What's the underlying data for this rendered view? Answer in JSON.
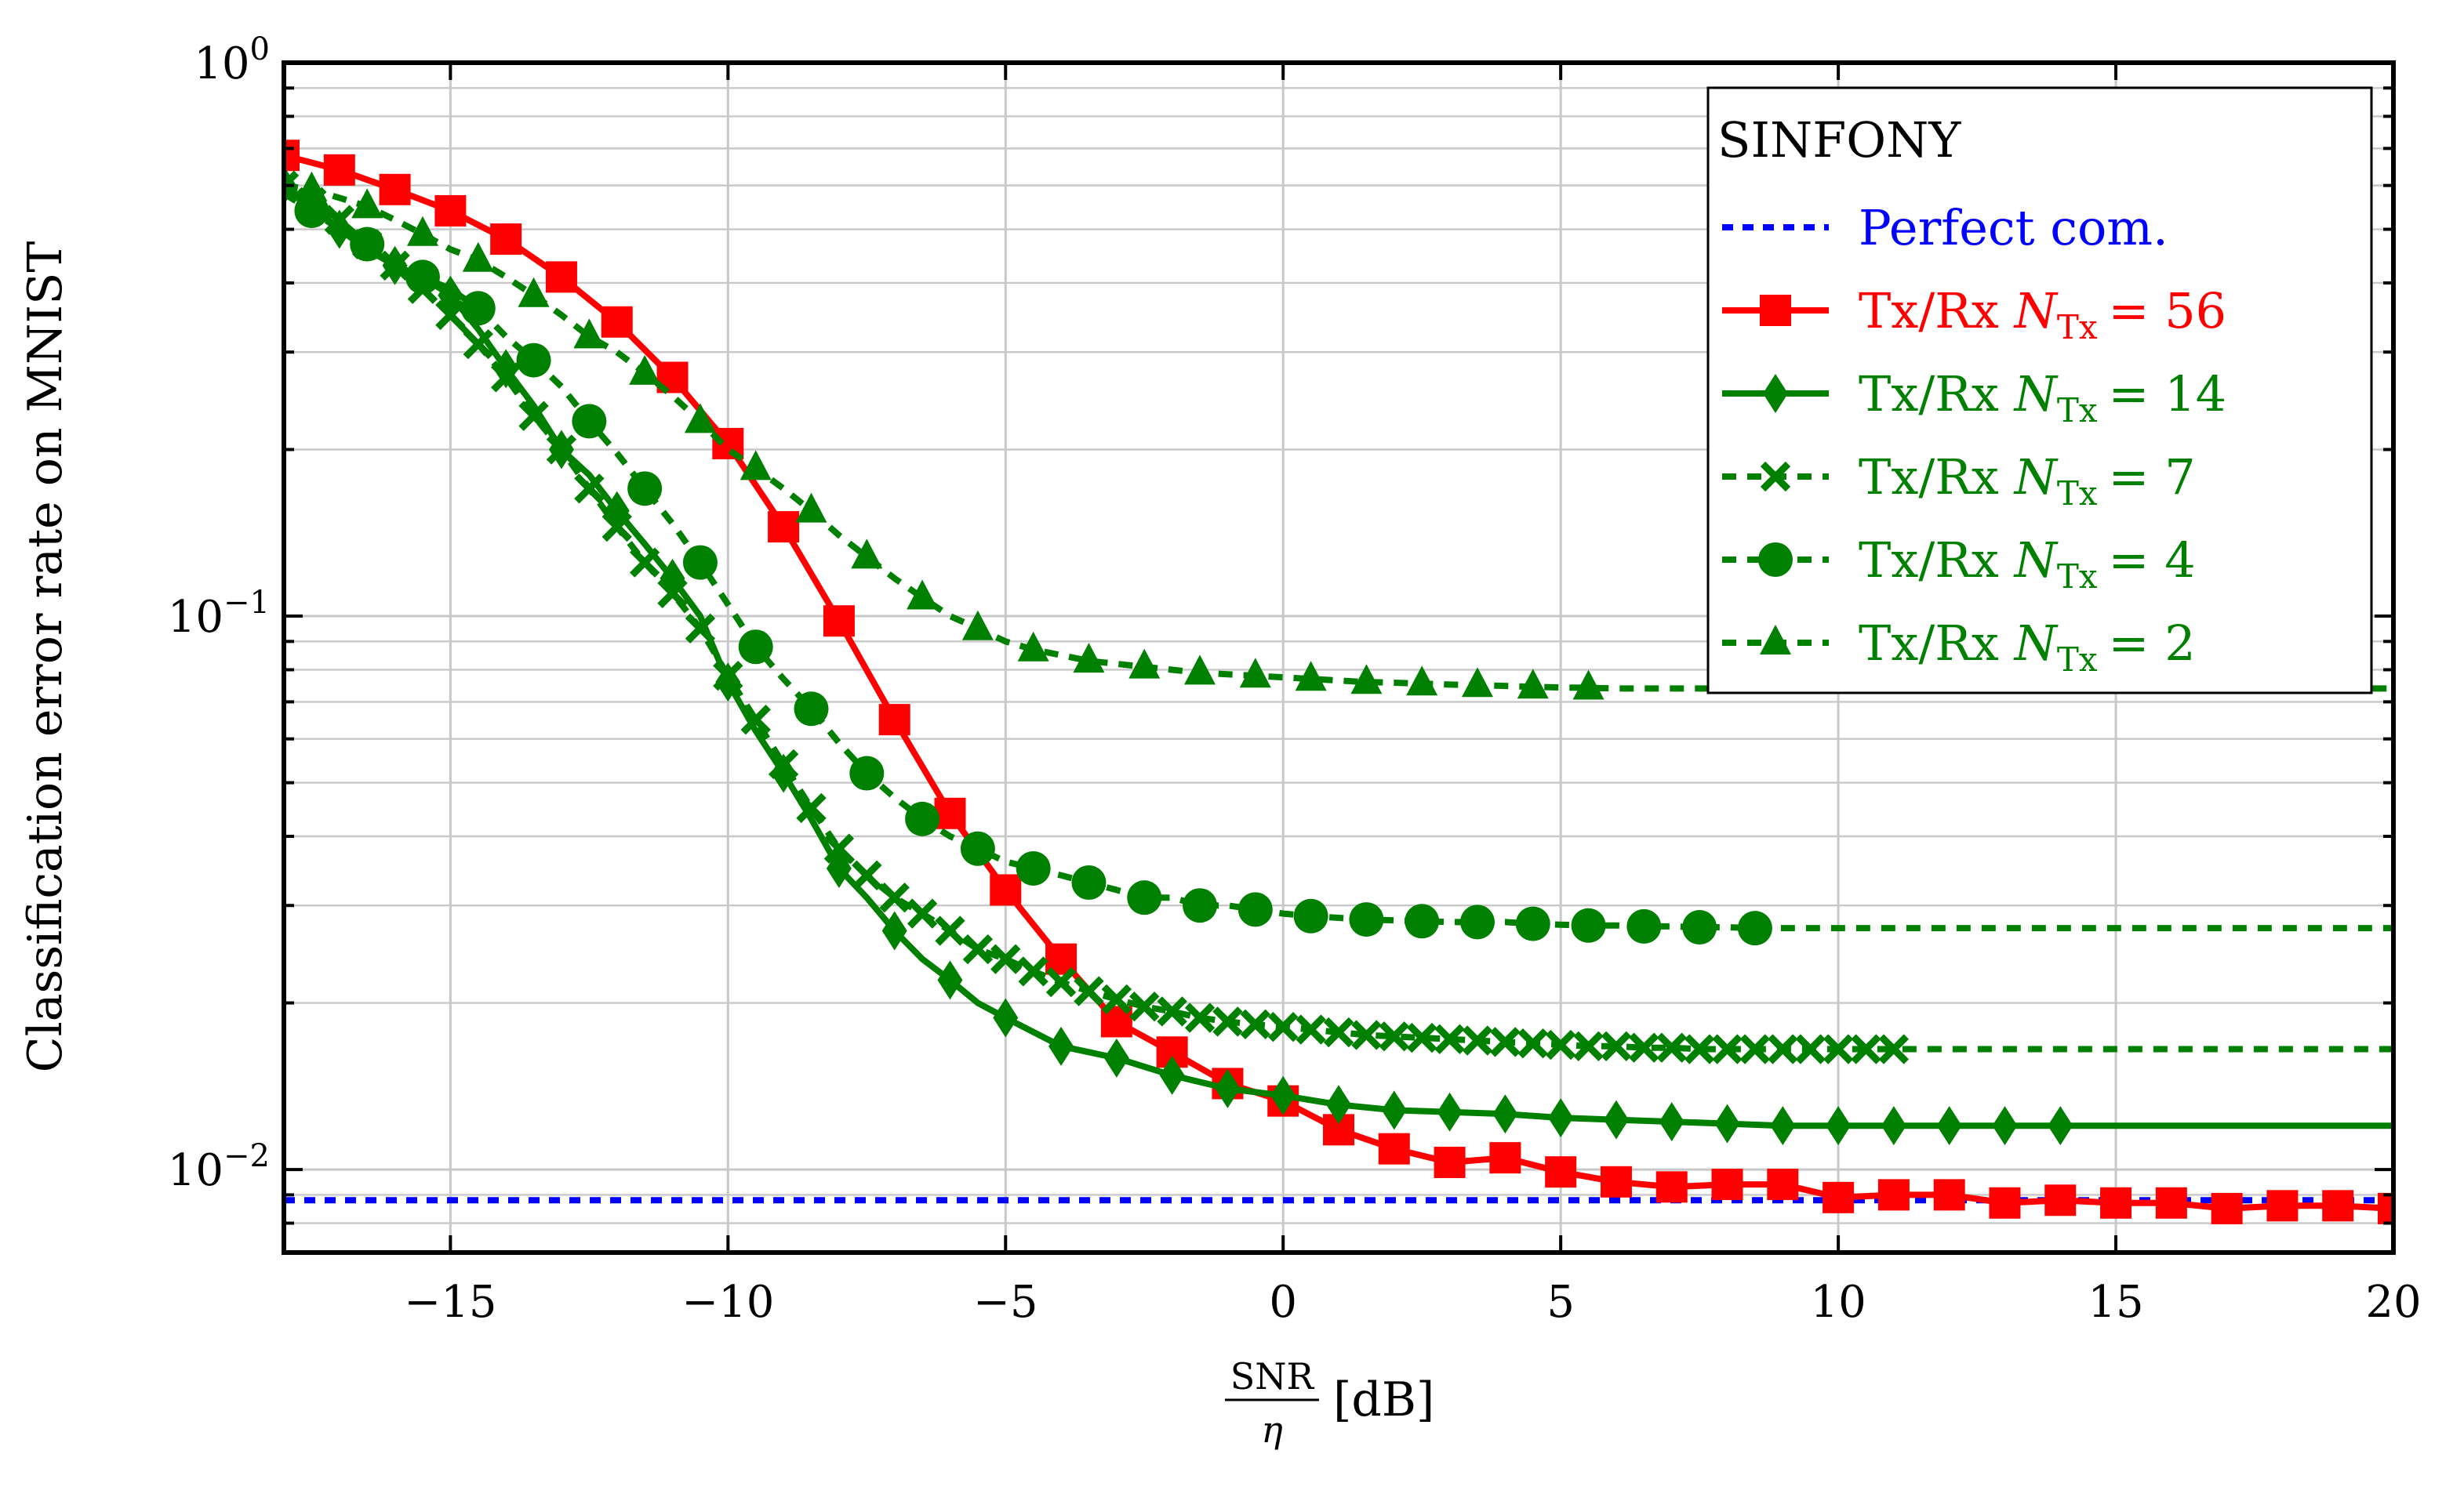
{
  "chart_data": {
    "type": "line",
    "title": "",
    "ylabel": "Classification error rate on MNIST",
    "xlabel": {
      "numerator": "SNR",
      "denominator": "η",
      "unit": "[dB]"
    },
    "xlim": [
      -18,
      20
    ],
    "ylim_log10": [
      -2.15,
      0
    ],
    "xscale": "linear",
    "yscale": "log",
    "grid": true,
    "x_ticks": [
      -15,
      -10,
      -5,
      0,
      5,
      10,
      15,
      20
    ],
    "x_tick_labels": [
      "−15",
      "−10",
      "−5",
      "0",
      "5",
      "10",
      "15",
      "20"
    ],
    "y_ticks": [
      {
        "base": "10",
        "exp": "−2",
        "value": 0.01
      },
      {
        "base": "10",
        "exp": "−1",
        "value": 0.1
      },
      {
        "base": "10",
        "exp": "0",
        "value": 1
      }
    ],
    "legend": {
      "title": "SINFONY",
      "position": "top-right"
    },
    "series": [
      {
        "name": "Perfect com.",
        "label_main": "Perfect com.",
        "label_sub": "",
        "label_value": "",
        "color": "#0000ff",
        "line": "dotted",
        "marker": "none",
        "x": [
          -18,
          20
        ],
        "y": [
          0.0088,
          0.0088
        ],
        "marker_until": null
      },
      {
        "name": "Tx/Rx N_Tx = 56",
        "label_main": "Tx/Rx N",
        "label_sub": "Tx",
        "label_value": "= 56",
        "color": "#ff0000",
        "line": "solid",
        "marker": "square",
        "x": [
          -18,
          -17,
          -16,
          -15,
          -14,
          -13,
          -12,
          -11,
          -10,
          -9,
          -8,
          -7,
          -6,
          -5,
          -4,
          -3,
          -2,
          -1,
          0,
          1,
          2,
          3,
          4,
          5,
          6,
          7,
          8,
          9,
          10,
          11,
          12,
          13,
          14,
          15,
          16,
          17,
          18,
          19,
          20
        ],
        "y": [
          0.68,
          0.64,
          0.59,
          0.54,
          0.48,
          0.41,
          0.34,
          0.27,
          0.205,
          0.145,
          0.098,
          0.065,
          0.044,
          0.032,
          0.024,
          0.0185,
          0.0163,
          0.0143,
          0.0133,
          0.0118,
          0.0109,
          0.0103,
          0.0105,
          0.0099,
          0.0095,
          0.0093,
          0.0094,
          0.0094,
          0.0089,
          0.009,
          0.009,
          0.0087,
          0.0088,
          0.0087,
          0.0087,
          0.0085,
          0.0086,
          0.0086,
          0.0085
        ],
        "marker_until": 20
      },
      {
        "name": "Tx/Rx N_Tx = 14",
        "label_main": "Tx/Rx N",
        "label_sub": "Tx",
        "label_value": "= 14",
        "color": "#008000",
        "line": "solid",
        "marker": "diamond",
        "x": [
          -18,
          -17.5,
          -17,
          -16.5,
          -16,
          -15.5,
          -15,
          -14.5,
          -14,
          -13.5,
          -13,
          -12.5,
          -12,
          -11.5,
          -11,
          -10.5,
          -10,
          -9.5,
          -9,
          -8.5,
          -8,
          -7.5,
          -7,
          -6.5,
          -6,
          -5.5,
          -5,
          -4,
          -3,
          -2,
          -1,
          0,
          1,
          2,
          3,
          4,
          5,
          6,
          7,
          8,
          9,
          10,
          11,
          12,
          13,
          14,
          15,
          20
        ],
        "y": [
          0.6,
          0.55,
          0.5,
          0.46,
          0.43,
          0.41,
          0.38,
          0.33,
          0.28,
          0.24,
          0.2,
          0.18,
          0.155,
          0.135,
          0.117,
          0.1,
          0.076,
          0.062,
          0.052,
          0.043,
          0.035,
          0.031,
          0.027,
          0.024,
          0.022,
          0.02,
          0.0188,
          0.0167,
          0.0159,
          0.0148,
          0.014,
          0.0136,
          0.0131,
          0.0128,
          0.0127,
          0.0126,
          0.0124,
          0.0123,
          0.0122,
          0.0121,
          0.012,
          0.012,
          0.012,
          0.012,
          0.012,
          0.012,
          0.012,
          0.012
        ],
        "marker_x": [
          -18,
          -17,
          -16,
          -15,
          -14,
          -13,
          -12,
          -11,
          -10,
          -9,
          -8,
          -7,
          -6,
          -5,
          -4,
          -3,
          -2,
          -1,
          0,
          1,
          2,
          3,
          4,
          5,
          6,
          7,
          8,
          9,
          10,
          11,
          12,
          13,
          14
        ],
        "marker_until": 14
      },
      {
        "name": "Tx/Rx N_Tx = 7",
        "label_main": "Tx/Rx N",
        "label_sub": "Tx",
        "label_value": "= 7",
        "color": "#008000",
        "line": "dashed",
        "marker": "x",
        "x": [
          -18,
          -17.5,
          -17,
          -16.5,
          -16,
          -15.5,
          -15,
          -14.5,
          -14,
          -13.5,
          -13,
          -12.5,
          -12,
          -11.5,
          -11,
          -10.5,
          -10,
          -9.5,
          -9,
          -8.5,
          -8,
          -7.5,
          -7,
          -6.5,
          -6,
          -5.5,
          -5,
          -4.5,
          -4,
          -3.5,
          -3,
          -2.5,
          -2,
          -1.5,
          -1,
          -0.5,
          0,
          0.5,
          1,
          1.5,
          2,
          2.5,
          3,
          3.5,
          4,
          4.5,
          5,
          5.5,
          6,
          6.5,
          7,
          7.5,
          8,
          8.5,
          9,
          9.5,
          10,
          10.5,
          11,
          11.5,
          20
        ],
        "y": [
          0.6,
          0.56,
          0.52,
          0.47,
          0.43,
          0.39,
          0.35,
          0.31,
          0.27,
          0.23,
          0.2,
          0.17,
          0.145,
          0.125,
          0.11,
          0.095,
          0.078,
          0.065,
          0.054,
          0.045,
          0.038,
          0.034,
          0.031,
          0.029,
          0.027,
          0.025,
          0.024,
          0.0228,
          0.0218,
          0.021,
          0.0203,
          0.0197,
          0.0193,
          0.0188,
          0.0185,
          0.0183,
          0.0181,
          0.0179,
          0.0177,
          0.0175,
          0.0174,
          0.0173,
          0.0172,
          0.0171,
          0.017,
          0.0169,
          0.0168,
          0.0167,
          0.0167,
          0.0166,
          0.0166,
          0.0165,
          0.0165,
          0.0165,
          0.0165,
          0.0165,
          0.0165,
          0.0165,
          0.0165,
          0.0165,
          0.0165
        ],
        "marker_x": [
          -18,
          -17.5,
          -17,
          -16.5,
          -16,
          -15.5,
          -15,
          -14.5,
          -14,
          -13.5,
          -13,
          -12.5,
          -12,
          -11.5,
          -11,
          -10.5,
          -10,
          -9.5,
          -9,
          -8.5,
          -8,
          -7.5,
          -7,
          -6.5,
          -6,
          -5.5,
          -5,
          -4.5,
          -4,
          -3.5,
          -3,
          -2.5,
          -2,
          -1.5,
          -1,
          -0.5,
          0,
          0.5,
          1,
          1.5,
          2,
          2.5,
          3,
          3.5,
          4,
          4.5,
          5,
          5.5,
          6,
          6.5,
          7,
          7.5,
          8,
          8.5,
          9,
          9.5,
          10,
          10.5,
          11
        ],
        "marker_until": 11
      },
      {
        "name": "Tx/Rx N_Tx = 4",
        "label_main": "Tx/Rx N",
        "label_sub": "Tx",
        "label_value": "= 4",
        "color": "#008000",
        "line": "dashed",
        "marker": "circle",
        "x": [
          -18,
          -17.5,
          -17,
          -16.5,
          -16,
          -15.5,
          -15,
          -14.5,
          -14,
          -13.5,
          -13,
          -12.5,
          -12,
          -11.5,
          -11,
          -10.5,
          -10,
          -9.5,
          -9,
          -8.5,
          -8,
          -7.5,
          -7,
          -6.5,
          -6,
          -5.5,
          -5,
          -4.5,
          -4,
          -3.5,
          -3,
          -2.5,
          -2,
          -1.5,
          -1,
          -0.5,
          0,
          0.5,
          1,
          1.5,
          2,
          2.5,
          3,
          3.5,
          4,
          4.5,
          5,
          5.5,
          6,
          6.5,
          7,
          7.5,
          8,
          8.5,
          9,
          20
        ],
        "y": [
          0.58,
          0.54,
          0.5,
          0.47,
          0.44,
          0.41,
          0.39,
          0.36,
          0.32,
          0.29,
          0.26,
          0.225,
          0.197,
          0.17,
          0.147,
          0.125,
          0.105,
          0.088,
          0.077,
          0.068,
          0.059,
          0.052,
          0.047,
          0.043,
          0.04,
          0.038,
          0.036,
          0.035,
          0.034,
          0.033,
          0.032,
          0.031,
          0.031,
          0.03,
          0.03,
          0.0295,
          0.029,
          0.0287,
          0.0285,
          0.0283,
          0.0282,
          0.0281,
          0.028,
          0.028,
          0.028,
          0.0278,
          0.0277,
          0.0276,
          0.0276,
          0.0275,
          0.0275,
          0.0274,
          0.0274,
          0.0273,
          0.0273,
          0.0273
        ],
        "marker_x": [
          -17.5,
          -16.5,
          -15.5,
          -14.5,
          -13.5,
          -12.5,
          -11.5,
          -10.5,
          -9.5,
          -8.5,
          -7.5,
          -6.5,
          -5.5,
          -4.5,
          -3.5,
          -2.5,
          -1.5,
          -0.5,
          0.5,
          1.5,
          2.5,
          3.5,
          4.5,
          5.5,
          6.5,
          7.5,
          8.5
        ],
        "marker_until": 8.5
      },
      {
        "name": "Tx/Rx N_Tx = 2",
        "label_main": "Tx/Rx N",
        "label_sub": "Tx",
        "label_value": "= 2",
        "color": "#008000",
        "line": "dashed",
        "marker": "triangle",
        "x": [
          -18,
          -17.5,
          -17,
          -16.5,
          -16,
          -15.5,
          -15,
          -14.5,
          -14,
          -13.5,
          -13,
          -12.5,
          -12,
          -11.5,
          -11,
          -10.5,
          -10,
          -9.5,
          -9,
          -8.5,
          -8,
          -7.5,
          -7,
          -6.5,
          -6,
          -5.5,
          -5,
          -4.5,
          -4,
          -3.5,
          -3,
          -2.5,
          -2,
          -1.5,
          -1,
          -0.5,
          0,
          0.5,
          1,
          1.5,
          2,
          2.5,
          3,
          3.5,
          4,
          4.5,
          5,
          5.5,
          6,
          20
        ],
        "y": [
          0.6,
          0.59,
          0.57,
          0.55,
          0.52,
          0.49,
          0.46,
          0.44,
          0.41,
          0.38,
          0.35,
          0.32,
          0.3,
          0.275,
          0.25,
          0.225,
          0.2,
          0.185,
          0.17,
          0.155,
          0.14,
          0.128,
          0.117,
          0.108,
          0.1,
          0.095,
          0.09,
          0.087,
          0.085,
          0.083,
          0.082,
          0.081,
          0.08,
          0.079,
          0.0785,
          0.078,
          0.0775,
          0.077,
          0.0765,
          0.076,
          0.0758,
          0.0755,
          0.0752,
          0.075,
          0.0748,
          0.0745,
          0.0743,
          0.0742,
          0.074,
          0.074
        ],
        "marker_x": [
          -17.5,
          -16.5,
          -15.5,
          -14.5,
          -13.5,
          -12.5,
          -11.5,
          -10.5,
          -9.5,
          -8.5,
          -7.5,
          -6.5,
          -5.5,
          -4.5,
          -3.5,
          -2.5,
          -1.5,
          -0.5,
          0.5,
          1.5,
          2.5,
          3.5,
          4.5,
          5.5
        ],
        "marker_until": 5.5
      }
    ]
  }
}
